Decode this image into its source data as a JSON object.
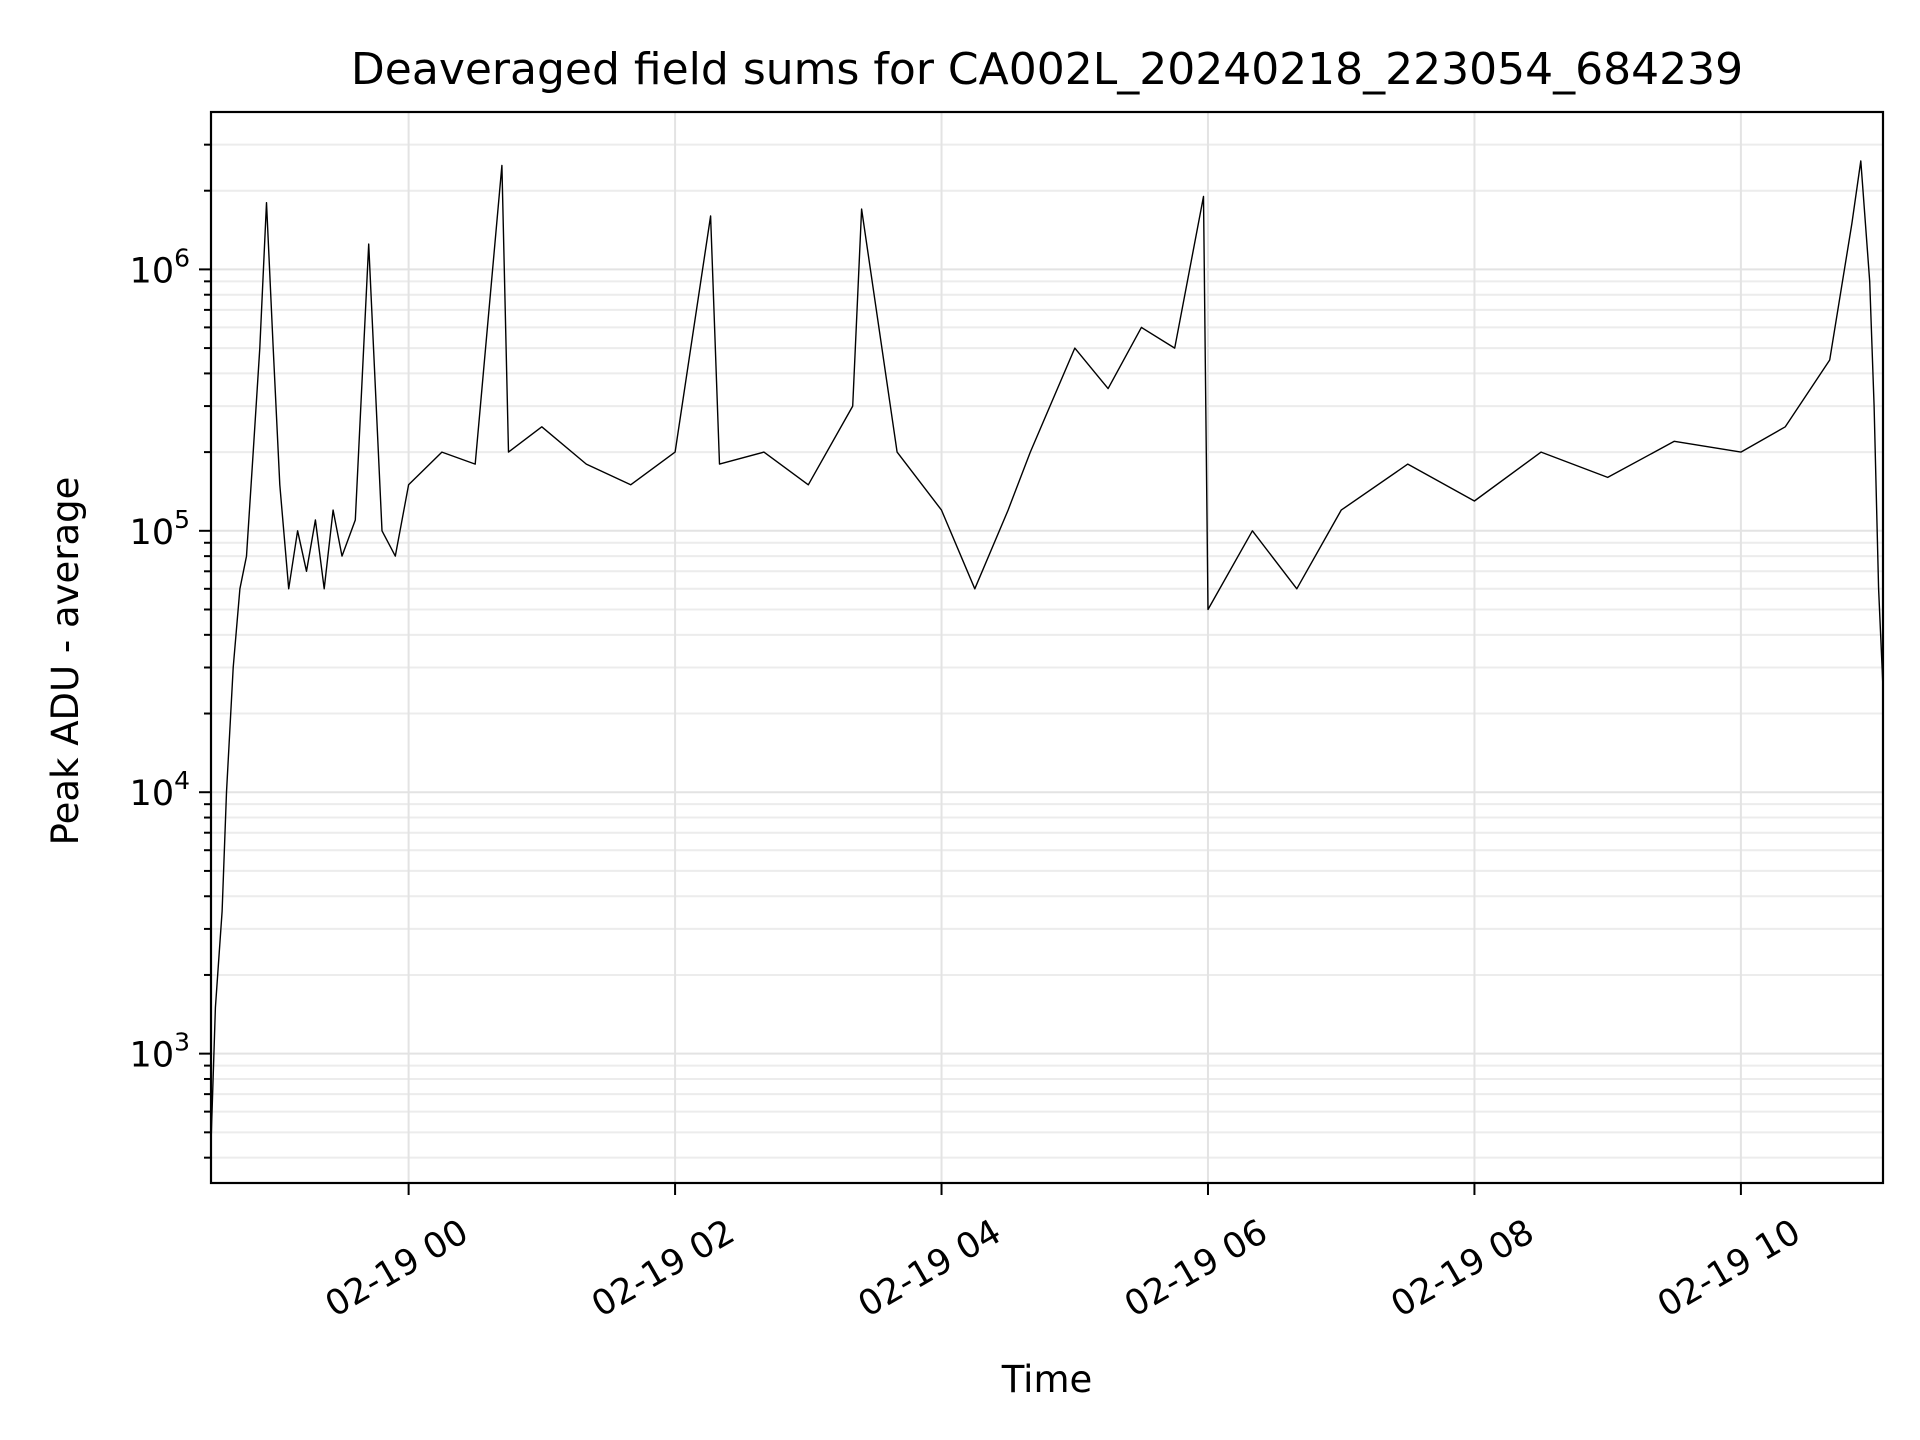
{
  "chart_data": {
    "type": "line",
    "title": "Deaveraged field sums for CA002L_20240218_223054_684239",
    "xlabel": "Time",
    "ylabel": "Peak ADU - average",
    "yscale": "log",
    "grid": true,
    "grid_minor": true,
    "xlim": [
      "2024-02-18 22:31",
      "2024-02-19 11:04"
    ],
    "ylim": [
      320,
      4000000
    ],
    "x_ticks": [
      {
        "value": "2024-02-19 00:00",
        "label": "02-19 00"
      },
      {
        "value": "2024-02-19 02:00",
        "label": "02-19 02"
      },
      {
        "value": "2024-02-19 04:00",
        "label": "02-19 04"
      },
      {
        "value": "2024-02-19 06:00",
        "label": "02-19 06"
      },
      {
        "value": "2024-02-19 08:00",
        "label": "02-19 08"
      },
      {
        "value": "2024-02-19 10:00",
        "label": "02-19 10"
      }
    ],
    "y_ticks": [
      {
        "value": 1000,
        "base": "10",
        "exp": "3"
      },
      {
        "value": 10000,
        "base": "10",
        "exp": "4"
      },
      {
        "value": 100000,
        "base": "10",
        "exp": "5"
      },
      {
        "value": 1000000,
        "base": "10",
        "exp": "6"
      }
    ],
    "series": [
      {
        "color": "#000000",
        "x": [
          "2024-02-18 22:31",
          "2024-02-18 22:33",
          "2024-02-18 22:36",
          "2024-02-18 22:38",
          "2024-02-18 22:41",
          "2024-02-18 22:44",
          "2024-02-18 22:47",
          "2024-02-18 22:50",
          "2024-02-18 22:53",
          "2024-02-18 22:56",
          "2024-02-18 22:59",
          "2024-02-18 23:02",
          "2024-02-18 23:06",
          "2024-02-18 23:10",
          "2024-02-18 23:14",
          "2024-02-18 23:18",
          "2024-02-18 23:22",
          "2024-02-18 23:26",
          "2024-02-18 23:30",
          "2024-02-18 23:36",
          "2024-02-18 23:42",
          "2024-02-18 23:48",
          "2024-02-18 23:54",
          "2024-02-19 00:00",
          "2024-02-19 00:15",
          "2024-02-19 00:30",
          "2024-02-19 00:42",
          "2024-02-19 00:45",
          "2024-02-19 01:00",
          "2024-02-19 01:20",
          "2024-02-19 01:40",
          "2024-02-19 02:00",
          "2024-02-19 02:16",
          "2024-02-19 02:20",
          "2024-02-19 02:40",
          "2024-02-19 03:00",
          "2024-02-19 03:20",
          "2024-02-19 03:24",
          "2024-02-19 03:40",
          "2024-02-19 04:00",
          "2024-02-19 04:15",
          "2024-02-19 04:30",
          "2024-02-19 04:40",
          "2024-02-19 05:00",
          "2024-02-19 05:15",
          "2024-02-19 05:30",
          "2024-02-19 05:45",
          "2024-02-19 05:58",
          "2024-02-19 06:00",
          "2024-02-19 06:20",
          "2024-02-19 06:40",
          "2024-02-19 07:00",
          "2024-02-19 07:30",
          "2024-02-19 08:00",
          "2024-02-19 08:30",
          "2024-02-19 09:00",
          "2024-02-19 09:30",
          "2024-02-19 10:00",
          "2024-02-19 10:20",
          "2024-02-19 10:40",
          "2024-02-19 10:50",
          "2024-02-19 10:54",
          "2024-02-19 10:58",
          "2024-02-19 11:00",
          "2024-02-19 11:02",
          "2024-02-19 11:04"
        ],
        "y": [
          450,
          1500,
          3500,
          10000,
          30000,
          60000,
          80000,
          200000,
          500000,
          1800000,
          500000,
          150000,
          60000,
          100000,
          70000,
          110000,
          60000,
          120000,
          80000,
          110000,
          1250000,
          100000,
          80000,
          150000,
          200000,
          180000,
          2500000,
          200000,
          250000,
          180000,
          150000,
          200000,
          1600000,
          180000,
          200000,
          150000,
          300000,
          1700000,
          200000,
          120000,
          60000,
          120000,
          200000,
          500000,
          350000,
          600000,
          500000,
          1900000,
          50000,
          100000,
          60000,
          120000,
          180000,
          130000,
          200000,
          160000,
          220000,
          200000,
          250000,
          450000,
          1500000,
          2600000,
          900000,
          300000,
          60000,
          25000
        ]
      }
    ]
  }
}
